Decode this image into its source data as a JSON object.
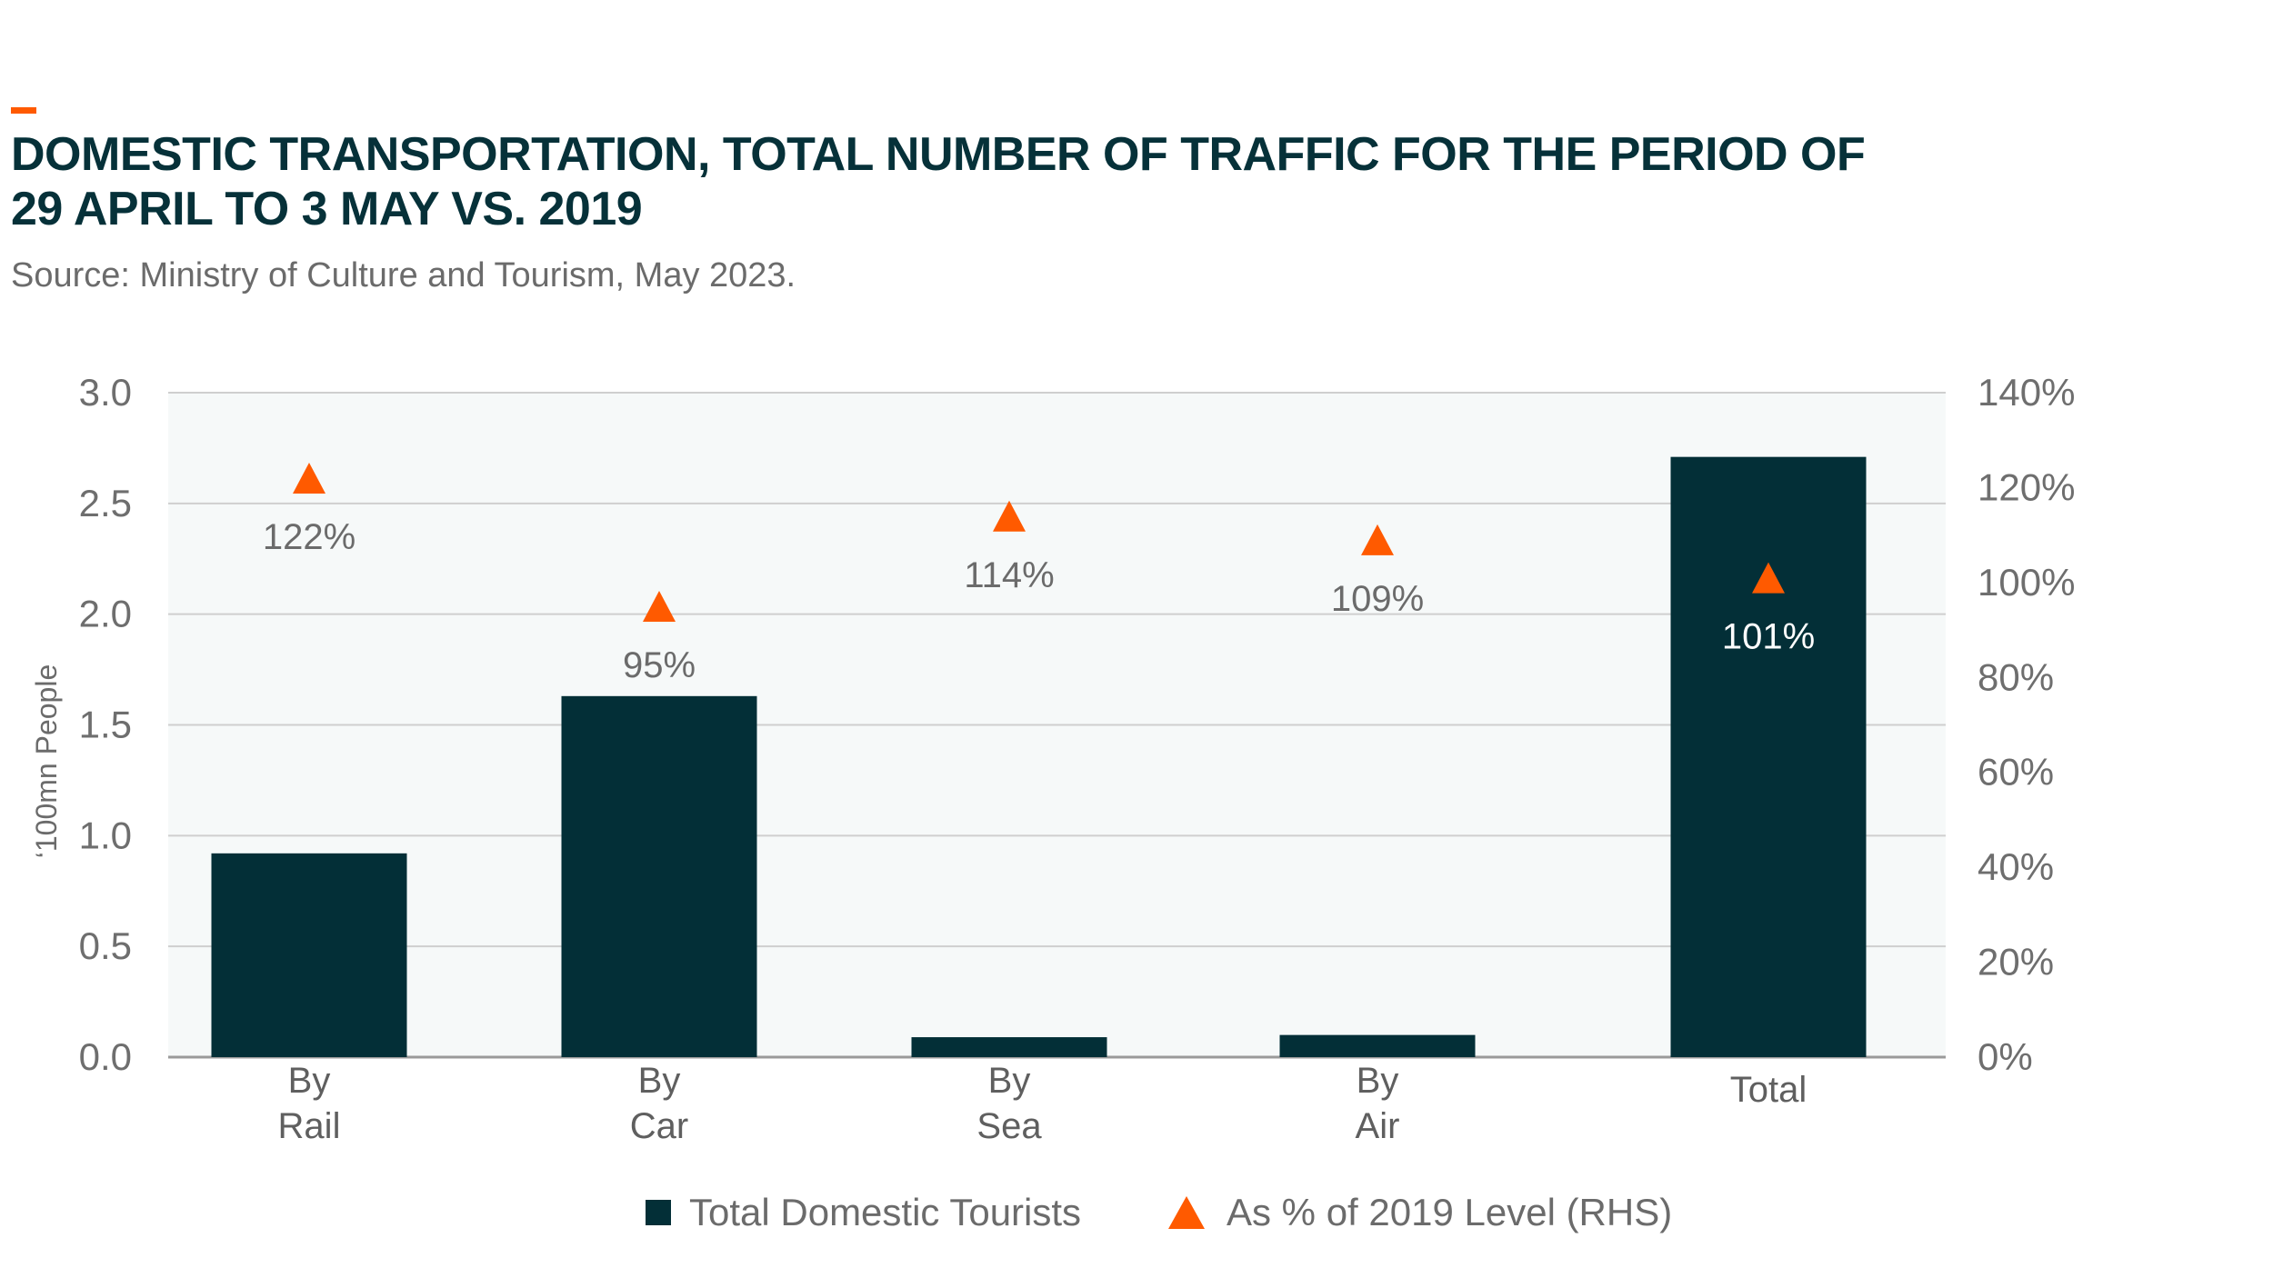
{
  "title_line1": "DOMESTIC TRANSPORTATION, TOTAL NUMBER OF TRAFFIC FOR THE PERIOD OF",
  "title_line2": "29 APRIL TO 3 MAY VS. 2019",
  "source": "Source: Ministry of Culture and Tourism, May 2023.",
  "colors": {
    "bar": "#032f37",
    "marker": "#ff5a00",
    "accent": "#ff5a00",
    "title": "#063139",
    "plot_bg": "#f6f9f9"
  },
  "chart_data": {
    "type": "bar",
    "categories": [
      [
        "By",
        "Rail"
      ],
      [
        "By",
        "Car"
      ],
      [
        "By",
        "Sea"
      ],
      [
        "By",
        "Air"
      ],
      [
        "Total"
      ]
    ],
    "ylabel": "‘100mn People",
    "ylim": [
      0,
      3.0
    ],
    "yticks": [
      "0.0",
      "0.5",
      "1.0",
      "1.5",
      "2.0",
      "2.5",
      "3.0"
    ],
    "y2lim": [
      0,
      140
    ],
    "y2ticks": [
      "0%",
      "20%",
      "40%",
      "60%",
      "80%",
      "100%",
      "120%",
      "140%"
    ],
    "grid": true,
    "legend_position": "bottom",
    "series": [
      {
        "name": "Total Domestic Tourists",
        "type": "bar",
        "axis": "left",
        "values": [
          0.92,
          1.63,
          0.09,
          0.1,
          2.71
        ]
      },
      {
        "name": "As % of 2019 Level (RHS)",
        "type": "marker",
        "axis": "right",
        "values": [
          122,
          95,
          114,
          109,
          101
        ],
        "labels": [
          "122%",
          "95%",
          "114%",
          "109%",
          "101%"
        ]
      }
    ]
  }
}
